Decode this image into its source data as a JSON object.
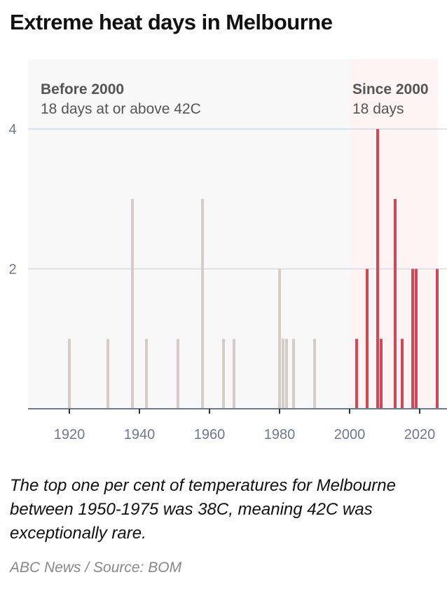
{
  "title": "Extreme heat days in Melbourne",
  "chart_data": {
    "type": "bar",
    "xlim": [
      1905,
      2027
    ],
    "ylim": [
      0,
      5
    ],
    "yticks": [
      2,
      4
    ],
    "xticks": [
      1920,
      1940,
      1960,
      1980,
      2000,
      2020
    ],
    "grid": true,
    "annotations": [
      {
        "title": "Before 2000",
        "subtitle": "18 days at or above 42C"
      },
      {
        "title": "Since 2000",
        "subtitle": "18 days"
      }
    ],
    "series": [
      {
        "color": "#d5ccc7",
        "x": [
          1920,
          1931,
          1938,
          1942,
          1951,
          1958,
          1964,
          1967,
          1980,
          1981,
          1982,
          1984,
          1990
        ],
        "values": [
          1,
          1,
          3,
          1,
          1,
          3,
          1,
          1,
          2,
          1,
          1,
          1,
          1
        ]
      },
      {
        "color": "#d24655",
        "x": [
          2002,
          2005,
          2008,
          2009,
          2013,
          2015,
          2018,
          2019,
          2025
        ],
        "values": [
          1,
          2,
          4,
          1,
          3,
          1,
          2,
          2,
          2
        ]
      }
    ],
    "regions": [
      {
        "from": 1905,
        "to": 2000,
        "color": "#f8f8f8"
      },
      {
        "from": 2000,
        "to": 2025.2,
        "color": "#fff4f4"
      }
    ]
  },
  "note": "The top one per cent of temperatures for Melbourne between 1950-1975 was 38C, meaning 42C was exceptionally rare.",
  "source": "ABC News / Source: BOM"
}
